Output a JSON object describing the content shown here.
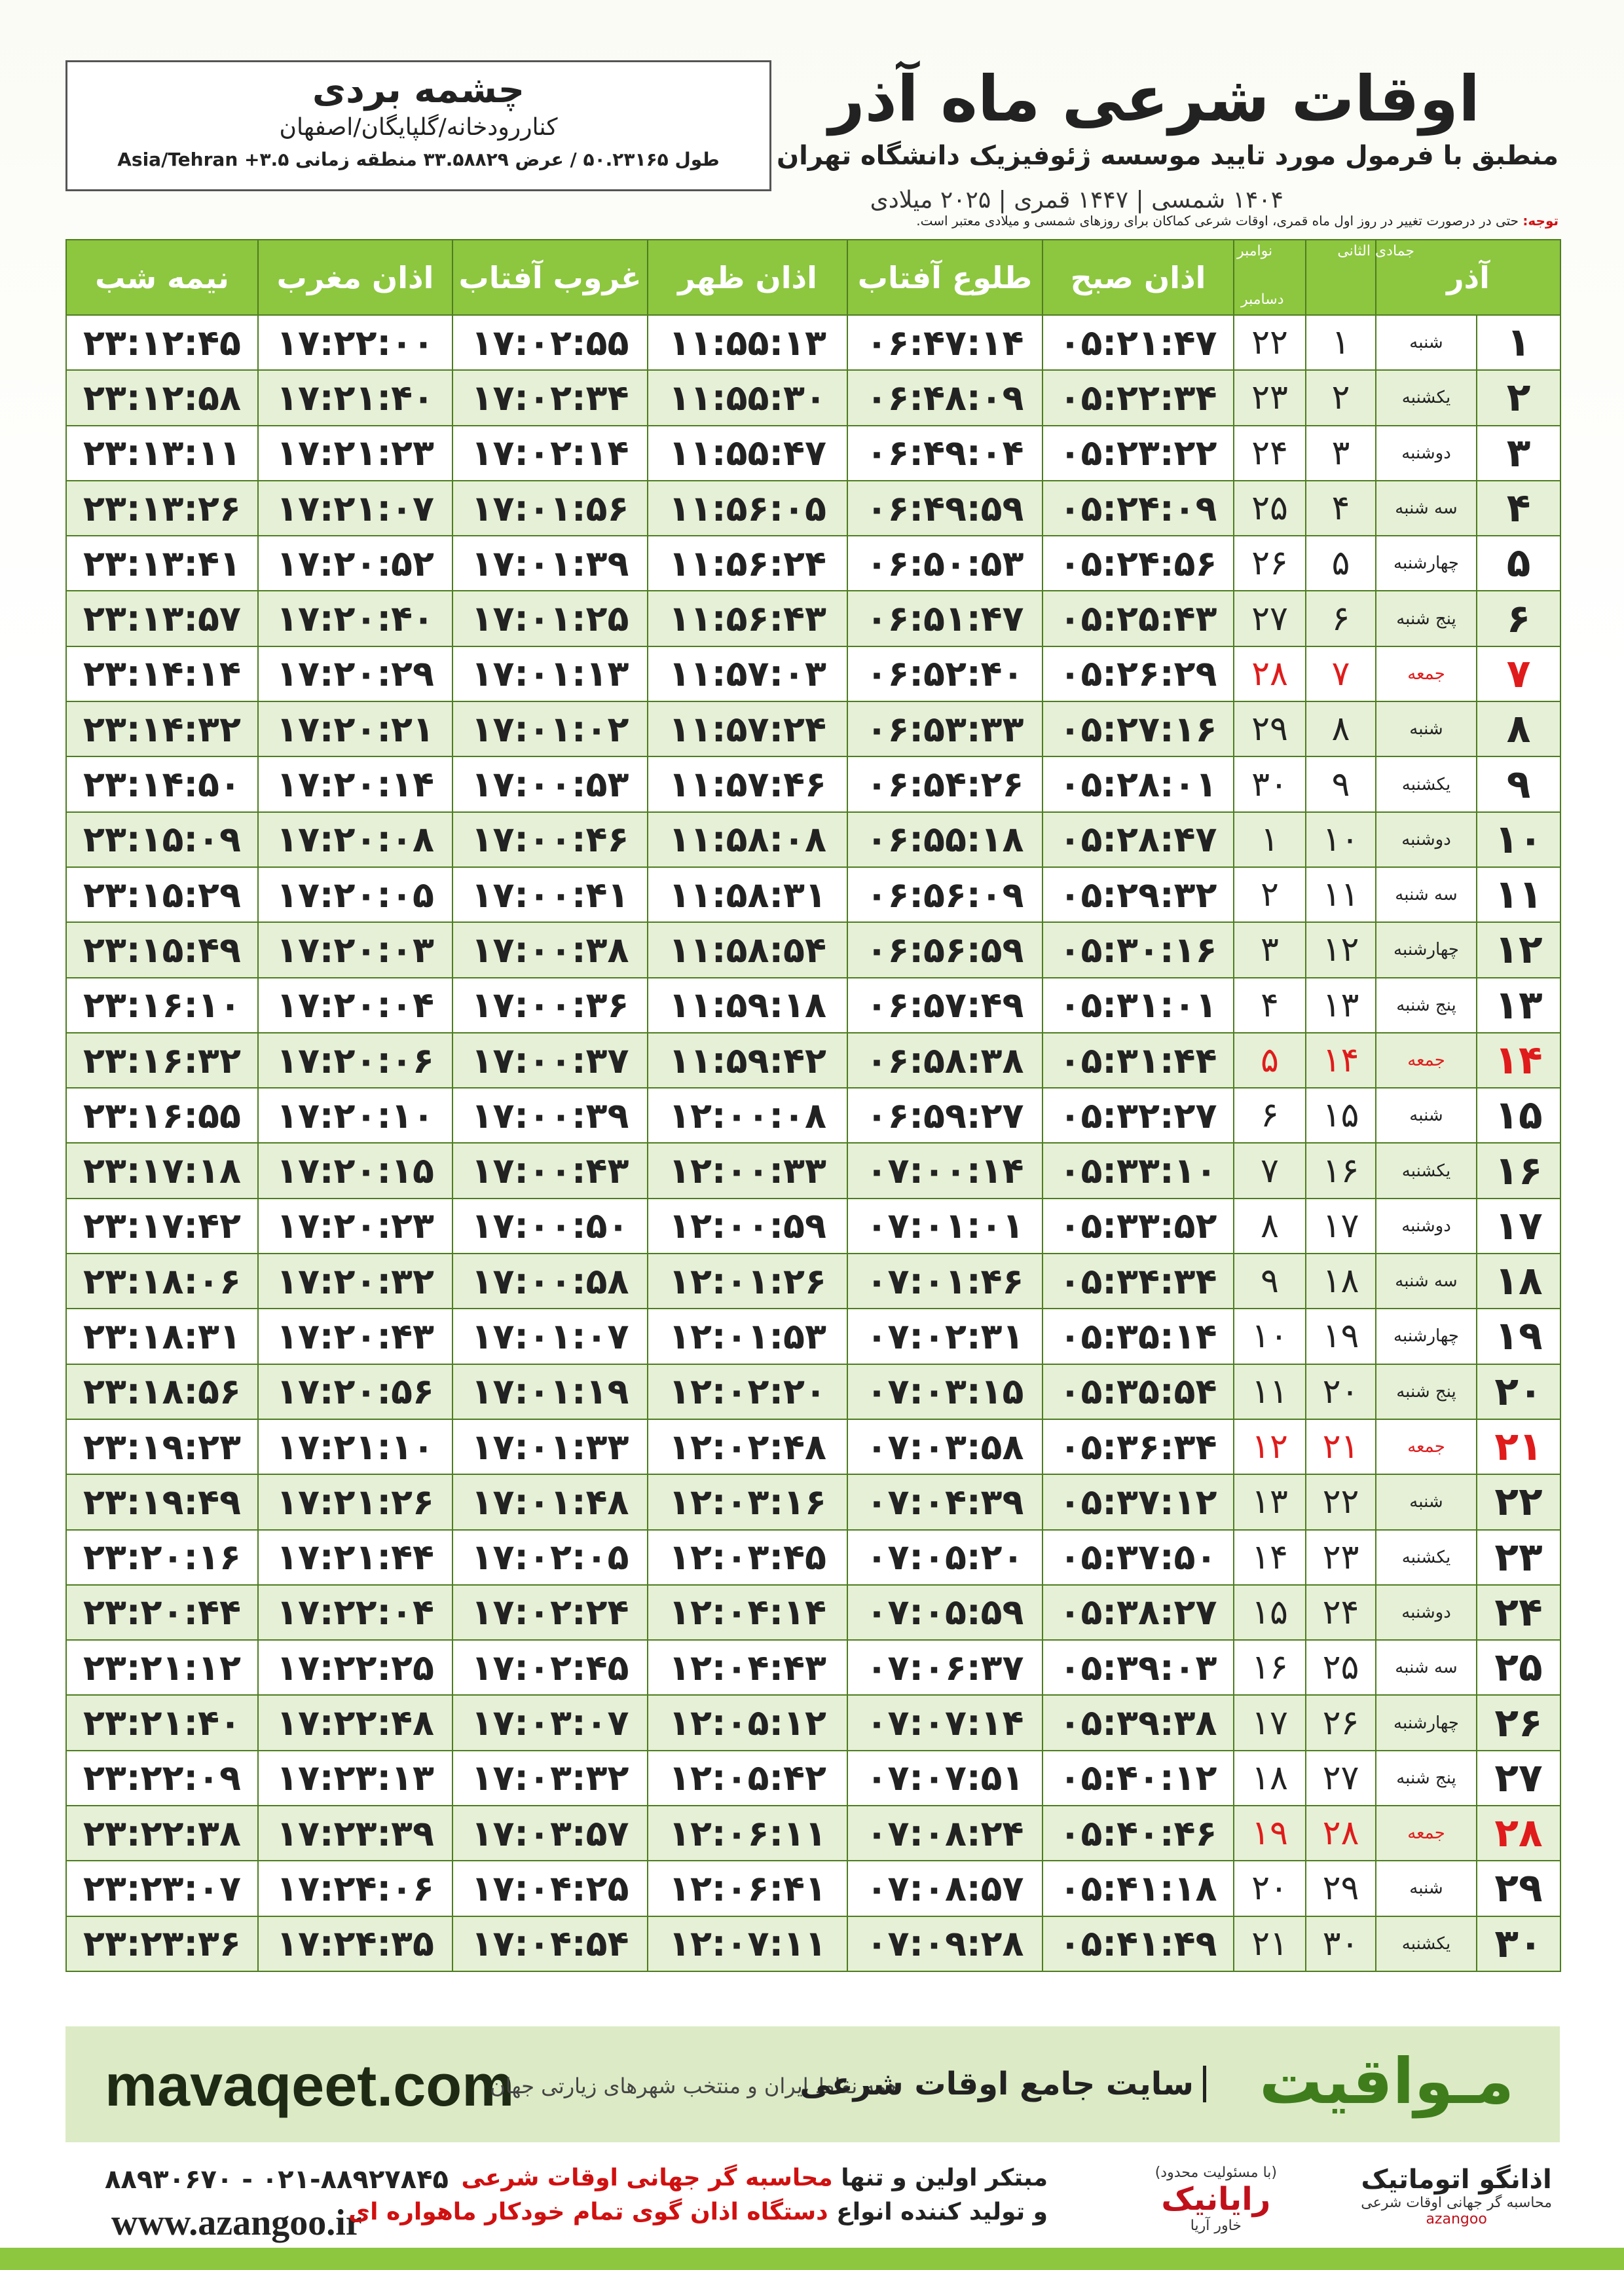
{
  "header": {
    "title": "اوقات شرعی ماه آذر",
    "subtitle": "منطبق با فرمول مورد تایید موسسه ژئوفیزیک دانشگاه تهران",
    "dates": "۱۴۰۴ شمسی | ۱۴۴۷ قمری | ۲۰۲۵ میلادی"
  },
  "location": {
    "name": "چشمه بردی",
    "region": "کناررودخانه/گلپایگان/اصفهان",
    "coords": "طول ۵۰.۲۳۱۶۵ / عرض ۳۳.۵۸۸۲۹ منطقه زمانی ۳.۵+ Asia/Tehran"
  },
  "note": {
    "label": "توجه:",
    "text": "حتی در درصورت تغییر در روز اول ماه قمری، اوقات شرعی کماکان برای روزهای شمسی و میلادی معتبر است."
  },
  "table": {
    "month": "آذر",
    "qamari": "جمادی الثانی",
    "greg_top": "نوامبر",
    "greg_bottom": "دسامبر",
    "time_headers": [
      "اذان صبح",
      "طلوع آفتاب",
      "اذان ظهر",
      "غروب آفتاب",
      "اذان مغرب",
      "نیمه شب"
    ],
    "rows": [
      [
        "۱",
        "شنبه",
        "۱",
        "۲۲",
        "۰۵:۲۱:۴۷",
        "۰۶:۴۷:۱۴",
        "۱۱:۵۵:۱۳",
        "۱۷:۰۲:۵۵",
        "۱۷:۲۲:۰۰",
        "۲۳:۱۲:۴۵"
      ],
      [
        "۲",
        "یکشنبه",
        "۲",
        "۲۳",
        "۰۵:۲۲:۳۴",
        "۰۶:۴۸:۰۹",
        "۱۱:۵۵:۳۰",
        "۱۷:۰۲:۳۴",
        "۱۷:۲۱:۴۰",
        "۲۳:۱۲:۵۸"
      ],
      [
        "۳",
        "دوشنبه",
        "۳",
        "۲۴",
        "۰۵:۲۳:۲۲",
        "۰۶:۴۹:۰۴",
        "۱۱:۵۵:۴۷",
        "۱۷:۰۲:۱۴",
        "۱۷:۲۱:۲۳",
        "۲۳:۱۳:۱۱"
      ],
      [
        "۴",
        "سه شنبه",
        "۴",
        "۲۵",
        "۰۵:۲۴:۰۹",
        "۰۶:۴۹:۵۹",
        "۱۱:۵۶:۰۵",
        "۱۷:۰۱:۵۶",
        "۱۷:۲۱:۰۷",
        "۲۳:۱۳:۲۶"
      ],
      [
        "۵",
        "چهارشنبه",
        "۵",
        "۲۶",
        "۰۵:۲۴:۵۶",
        "۰۶:۵۰:۵۳",
        "۱۱:۵۶:۲۴",
        "۱۷:۰۱:۳۹",
        "۱۷:۲۰:۵۲",
        "۲۳:۱۳:۴۱"
      ],
      [
        "۶",
        "پنج شنبه",
        "۶",
        "۲۷",
        "۰۵:۲۵:۴۳",
        "۰۶:۵۱:۴۷",
        "۱۱:۵۶:۴۳",
        "۱۷:۰۱:۲۵",
        "۱۷:۲۰:۴۰",
        "۲۳:۱۳:۵۷"
      ],
      [
        "۷",
        "جمعه",
        "۷",
        "۲۸",
        "۰۵:۲۶:۲۹",
        "۰۶:۵۲:۴۰",
        "۱۱:۵۷:۰۳",
        "۱۷:۰۱:۱۳",
        "۱۷:۲۰:۲۹",
        "۲۳:۱۴:۱۴"
      ],
      [
        "۸",
        "شنبه",
        "۸",
        "۲۹",
        "۰۵:۲۷:۱۶",
        "۰۶:۵۳:۳۳",
        "۱۱:۵۷:۲۴",
        "۱۷:۰۱:۰۲",
        "۱۷:۲۰:۲۱",
        "۲۳:۱۴:۳۲"
      ],
      [
        "۹",
        "یکشنبه",
        "۹",
        "۳۰",
        "۰۵:۲۸:۰۱",
        "۰۶:۵۴:۲۶",
        "۱۱:۵۷:۴۶",
        "۱۷:۰۰:۵۳",
        "۱۷:۲۰:۱۴",
        "۲۳:۱۴:۵۰"
      ],
      [
        "۱۰",
        "دوشنبه",
        "۱۰",
        "۱",
        "۰۵:۲۸:۴۷",
        "۰۶:۵۵:۱۸",
        "۱۱:۵۸:۰۸",
        "۱۷:۰۰:۴۶",
        "۱۷:۲۰:۰۸",
        "۲۳:۱۵:۰۹"
      ],
      [
        "۱۱",
        "سه شنبه",
        "۱۱",
        "۲",
        "۰۵:۲۹:۳۲",
        "۰۶:۵۶:۰۹",
        "۱۱:۵۸:۳۱",
        "۱۷:۰۰:۴۱",
        "۱۷:۲۰:۰۵",
        "۲۳:۱۵:۲۹"
      ],
      [
        "۱۲",
        "چهارشنبه",
        "۱۲",
        "۳",
        "۰۵:۳۰:۱۶",
        "۰۶:۵۶:۵۹",
        "۱۱:۵۸:۵۴",
        "۱۷:۰۰:۳۸",
        "۱۷:۲۰:۰۳",
        "۲۳:۱۵:۴۹"
      ],
      [
        "۱۳",
        "پنج شنبه",
        "۱۳",
        "۴",
        "۰۵:۳۱:۰۱",
        "۰۶:۵۷:۴۹",
        "۱۱:۵۹:۱۸",
        "۱۷:۰۰:۳۶",
        "۱۷:۲۰:۰۴",
        "۲۳:۱۶:۱۰"
      ],
      [
        "۱۴",
        "جمعه",
        "۱۴",
        "۵",
        "۰۵:۳۱:۴۴",
        "۰۶:۵۸:۳۸",
        "۱۱:۵۹:۴۲",
        "۱۷:۰۰:۳۷",
        "۱۷:۲۰:۰۶",
        "۲۳:۱۶:۳۲"
      ],
      [
        "۱۵",
        "شنبه",
        "۱۵",
        "۶",
        "۰۵:۳۲:۲۷",
        "۰۶:۵۹:۲۷",
        "۱۲:۰۰:۰۸",
        "۱۷:۰۰:۳۹",
        "۱۷:۲۰:۱۰",
        "۲۳:۱۶:۵۵"
      ],
      [
        "۱۶",
        "یکشنبه",
        "۱۶",
        "۷",
        "۰۵:۳۳:۱۰",
        "۰۷:۰۰:۱۴",
        "۱۲:۰۰:۳۳",
        "۱۷:۰۰:۴۳",
        "۱۷:۲۰:۱۵",
        "۲۳:۱۷:۱۸"
      ],
      [
        "۱۷",
        "دوشنبه",
        "۱۷",
        "۸",
        "۰۵:۳۳:۵۲",
        "۰۷:۰۱:۰۱",
        "۱۲:۰۰:۵۹",
        "۱۷:۰۰:۵۰",
        "۱۷:۲۰:۲۳",
        "۲۳:۱۷:۴۲"
      ],
      [
        "۱۸",
        "سه شنبه",
        "۱۸",
        "۹",
        "۰۵:۳۴:۳۴",
        "۰۷:۰۱:۴۶",
        "۱۲:۰۱:۲۶",
        "۱۷:۰۰:۵۸",
        "۱۷:۲۰:۳۲",
        "۲۳:۱۸:۰۶"
      ],
      [
        "۱۹",
        "چهارشنبه",
        "۱۹",
        "۱۰",
        "۰۵:۳۵:۱۴",
        "۰۷:۰۲:۳۱",
        "۱۲:۰۱:۵۳",
        "۱۷:۰۱:۰۷",
        "۱۷:۲۰:۴۳",
        "۲۳:۱۸:۳۱"
      ],
      [
        "۲۰",
        "پنج شنبه",
        "۲۰",
        "۱۱",
        "۰۵:۳۵:۵۴",
        "۰۷:۰۳:۱۵",
        "۱۲:۰۲:۲۰",
        "۱۷:۰۱:۱۹",
        "۱۷:۲۰:۵۶",
        "۲۳:۱۸:۵۶"
      ],
      [
        "۲۱",
        "جمعه",
        "۲۱",
        "۱۲",
        "۰۵:۳۶:۳۴",
        "۰۷:۰۳:۵۸",
        "۱۲:۰۲:۴۸",
        "۱۷:۰۱:۳۳",
        "۱۷:۲۱:۱۰",
        "۲۳:۱۹:۲۳"
      ],
      [
        "۲۲",
        "شنبه",
        "۲۲",
        "۱۳",
        "۰۵:۳۷:۱۲",
        "۰۷:۰۴:۳۹",
        "۱۲:۰۳:۱۶",
        "۱۷:۰۱:۴۸",
        "۱۷:۲۱:۲۶",
        "۲۳:۱۹:۴۹"
      ],
      [
        "۲۳",
        "یکشنبه",
        "۲۳",
        "۱۴",
        "۰۵:۳۷:۵۰",
        "۰۷:۰۵:۲۰",
        "۱۲:۰۳:۴۵",
        "۱۷:۰۲:۰۵",
        "۱۷:۲۱:۴۴",
        "۲۳:۲۰:۱۶"
      ],
      [
        "۲۴",
        "دوشنبه",
        "۲۴",
        "۱۵",
        "۰۵:۳۸:۲۷",
        "۰۷:۰۵:۵۹",
        "۱۲:۰۴:۱۴",
        "۱۷:۰۲:۲۴",
        "۱۷:۲۲:۰۴",
        "۲۳:۲۰:۴۴"
      ],
      [
        "۲۵",
        "سه شنبه",
        "۲۵",
        "۱۶",
        "۰۵:۳۹:۰۳",
        "۰۷:۰۶:۳۷",
        "۱۲:۰۴:۴۳",
        "۱۷:۰۲:۴۵",
        "۱۷:۲۲:۲۵",
        "۲۳:۲۱:۱۲"
      ],
      [
        "۲۶",
        "چهارشنبه",
        "۲۶",
        "۱۷",
        "۰۵:۳۹:۳۸",
        "۰۷:۰۷:۱۴",
        "۱۲:۰۵:۱۲",
        "۱۷:۰۳:۰۷",
        "۱۷:۲۲:۴۸",
        "۲۳:۲۱:۴۰"
      ],
      [
        "۲۷",
        "پنج شنبه",
        "۲۷",
        "۱۸",
        "۰۵:۴۰:۱۲",
        "۰۷:۰۷:۵۱",
        "۱۲:۰۵:۴۲",
        "۱۷:۰۳:۳۲",
        "۱۷:۲۳:۱۳",
        "۲۳:۲۲:۰۹"
      ],
      [
        "۲۸",
        "جمعه",
        "۲۸",
        "۱۹",
        "۰۵:۴۰:۴۶",
        "۰۷:۰۸:۲۴",
        "۱۲:۰۶:۱۱",
        "۱۷:۰۳:۵۷",
        "۱۷:۲۳:۳۹",
        "۲۳:۲۲:۳۸"
      ],
      [
        "۲۹",
        "شنبه",
        "۲۹",
        "۲۰",
        "۰۵:۴۱:۱۸",
        "۰۷:۰۸:۵۷",
        "۱۲:۰۶:۴۱",
        "۱۷:۰۴:۲۵",
        "۱۷:۲۴:۰۶",
        "۲۳:۲۳:۰۷"
      ],
      [
        "۳۰",
        "یکشنبه",
        "۳۰",
        "۲۱",
        "۰۵:۴۱:۴۹",
        "۰۷:۰۹:۲۸",
        "۱۲:۰۷:۱۱",
        "۱۷:۰۴:۵۴",
        "۱۷:۲۴:۳۵",
        "۲۳:۲۳:۳۶"
      ]
    ]
  },
  "banner": {
    "brand": "مـواقیت",
    "slogan": "سایت جامع اوقات شرعی",
    "scope": "همه نقاط ایران و منتخب شهرهای زیارتی جهان",
    "site": "mavaqeet.com"
  },
  "footer": {
    "phones": "۰۲۱-۸۸۹۲۷۸۴۵ - ۸۸۹۳۰۶۷۰",
    "web": "www.azangoo.ir",
    "line1_a": "مبتکر اولین و تنها ",
    "line1_b": "محاسبه گر جهانی اوقات شرعی",
    "line2_a": "و تولید کننده انواع ",
    "line2_b": "دستگاه اذان گوی تمام خودکار ماهواره ای",
    "logo1": "رایانیک",
    "logo1_sub": "خاور آریا",
    "logo1_note": "(با مسئولیت محدود)",
    "logo2": "اذانگو اتوماتیک",
    "logo2_sub": "محاسبه گر جهانی اوقات شرعی",
    "logo2_en": "azangoo"
  }
}
